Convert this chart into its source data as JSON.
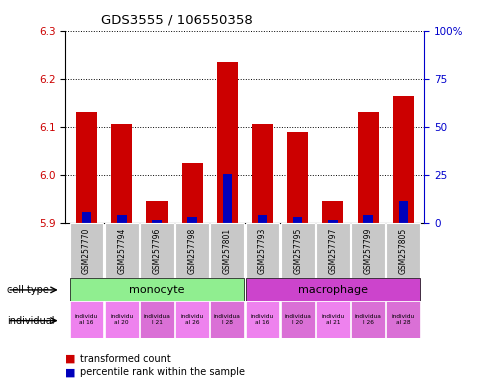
{
  "title": "GDS3555 / 106550358",
  "samples": [
    "GSM257770",
    "GSM257794",
    "GSM257796",
    "GSM257798",
    "GSM257801",
    "GSM257793",
    "GSM257795",
    "GSM257797",
    "GSM257799",
    "GSM257805"
  ],
  "red_values": [
    6.13,
    6.105,
    5.945,
    6.025,
    6.235,
    6.105,
    6.09,
    5.945,
    6.13,
    6.165
  ],
  "blue_values": [
    5.923,
    5.916,
    5.906,
    5.911,
    6.001,
    5.916,
    5.911,
    5.906,
    5.916,
    5.946
  ],
  "ylim_left": [
    5.9,
    6.3
  ],
  "ylim_right": [
    0,
    100
  ],
  "yticks_left": [
    5.9,
    6.0,
    6.1,
    6.2,
    6.3
  ],
  "yticks_right": [
    0,
    25,
    50,
    75,
    100
  ],
  "ytick_right_labels": [
    "0",
    "25",
    "50",
    "75",
    "100%"
  ],
  "base_value": 5.9,
  "bar_width": 0.6,
  "left_axis_color": "#cc0000",
  "right_axis_color": "#0000cc",
  "indiv_labels": [
    "individu\nal 16",
    "individu\nal 20",
    "individua\nl 21",
    "individu\nal 26",
    "individua\nl 28",
    "individu\nal 16",
    "individua\nl 20",
    "individu\nal 21",
    "individua\nl 26",
    "individu\nal 28"
  ],
  "indiv_colors": [
    "#ee82ee",
    "#ee82ee",
    "#da70d6",
    "#ee82ee",
    "#da70d6",
    "#ee82ee",
    "#da70d6",
    "#ee82ee",
    "#da70d6",
    "#da70d6"
  ],
  "cell_type_green": "#90ee90",
  "cell_type_magenta": "#cc44cc",
  "bar_red": "#cc0000",
  "bar_blue": "#0000bb",
  "bg_gray": "#c8c8c8"
}
